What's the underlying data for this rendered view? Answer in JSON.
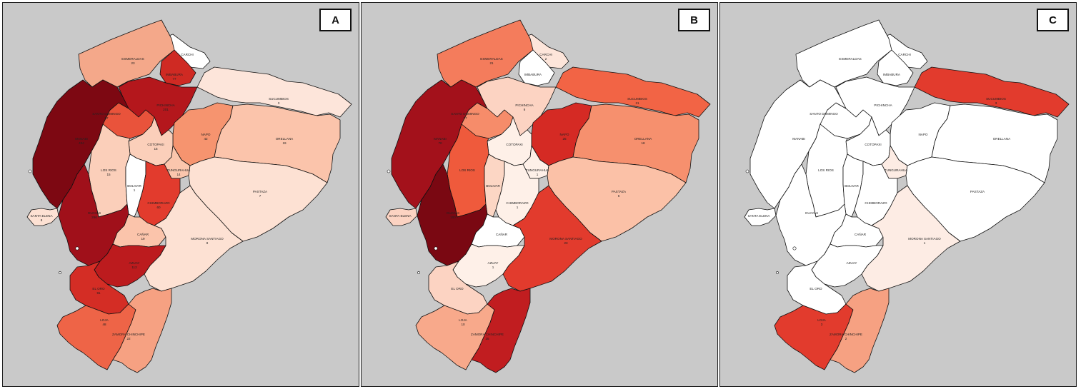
{
  "panels": [
    {
      "id": "a",
      "letter": "A",
      "regions": {
        "carchi": {
          "label": "CARCHI",
          "value": "",
          "fill": "#ffffff"
        },
        "esmeraldas": {
          "label": "ESMERALDAS",
          "value": "23",
          "fill": "#f4a88a"
        },
        "imbabura": {
          "label": "IMBABURA",
          "value": "77",
          "fill": "#cf2a23"
        },
        "pichincha": {
          "label": "PICHINCHA",
          "value": "201",
          "fill": "#b4171c"
        },
        "sucumbios": {
          "label": "SUCUMBIOS",
          "value": "3",
          "fill": "#fde5da"
        },
        "santo_domingo": {
          "label": "SANTO DOMINGO",
          "value": "57",
          "fill": "#e9533b"
        },
        "manabi": {
          "label": "MANABI",
          "value": "404",
          "fill": "#7d0812"
        },
        "napo": {
          "label": "NAPO",
          "value": "42",
          "fill": "#f6946f"
        },
        "orellana": {
          "label": "ORELLANA",
          "value": "19",
          "fill": "#fbc4ab"
        },
        "cotopaxi": {
          "label": "COTOPAXI",
          "value": "15",
          "fill": "#fbcfba"
        },
        "los_rios": {
          "label": "LOS RIOS",
          "value": "15",
          "fill": "#fbcfba"
        },
        "tungurahua": {
          "label": "TUNGURAHUA",
          "value": "14",
          "fill": "#fbc6ad"
        },
        "bolivar": {
          "label": "BOLIVAR",
          "value": "1",
          "fill": "#ffffff"
        },
        "pastaza": {
          "label": "PASTAZA",
          "value": "7",
          "fill": "#fde1d3"
        },
        "chimborazo": {
          "label": "CHIMBORAZO",
          "value": "60",
          "fill": "#e23b2d"
        },
        "santa_elena": {
          "label": "SANTA ELENA",
          "value": "8",
          "fill": "#fde1d3"
        },
        "guayas": {
          "label": "GUAYAS",
          "value": "266",
          "fill": "#a0101a"
        },
        "canar": {
          "label": "CAÑAR",
          "value": "19",
          "fill": "#fbc4ab"
        },
        "morona_santiago": {
          "label": "MORONA SANTIAGO",
          "value": "8",
          "fill": "#fde1d3"
        },
        "azuay": {
          "label": "AZUAY",
          "value": "112",
          "fill": "#bc1b1e"
        },
        "el_oro": {
          "label": "EL ORO",
          "value": "91",
          "fill": "#d42d25"
        },
        "loja": {
          "label": "LOJA",
          "value": "48",
          "fill": "#ee6447"
        },
        "zamora_chinchipe": {
          "label": "ZAMORA CHINCHIPE",
          "value": "22",
          "fill": "#f6a182"
        }
      }
    },
    {
      "id": "b",
      "letter": "B",
      "regions": {
        "carchi": {
          "label": "CARCHI",
          "value": "2",
          "fill": "#fde5da"
        },
        "esmeraldas": {
          "label": "ESMERALDAS",
          "value": "21",
          "fill": "#f47c5c"
        },
        "imbabura": {
          "label": "IMBABURA",
          "value": "",
          "fill": "#ffffff"
        },
        "pichincha": {
          "label": "PICHINCHA",
          "value": "6",
          "fill": "#fcd3c2"
        },
        "sucumbios": {
          "label": "SUCUMBIOS",
          "value": "21",
          "fill": "#f26445"
        },
        "santo_domingo": {
          "label": "SANTO DOMINGO",
          "value": "17",
          "fill": "#f68c6a"
        },
        "manabi": {
          "label": "MANABI",
          "value": "70",
          "fill": "#a3111b"
        },
        "napo": {
          "label": "NAPO",
          "value": "25",
          "fill": "#d52a24"
        },
        "orellana": {
          "label": "ORELLANA",
          "value": "18",
          "fill": "#f6906e"
        },
        "cotopaxi": {
          "label": "COTOPAXI",
          "value": "",
          "fill": "#fef0e8"
        },
        "los_rios": {
          "label": "LOS RIOS",
          "value": "",
          "fill": "#ef5a3c"
        },
        "tungurahua": {
          "label": "TUNGURAHUA",
          "value": "1",
          "fill": "#fef0e8"
        },
        "bolivar": {
          "label": "BOLIVAR",
          "value": "",
          "fill": "#fcd6c4"
        },
        "pastaza": {
          "label": "PASTAZA",
          "value": "6",
          "fill": "#fbc1a7"
        },
        "chimborazo": {
          "label": "CHIMBORAZO",
          "value": "1",
          "fill": "#fef0e8"
        },
        "santa_elena": {
          "label": "SANTA ELENA",
          "value": "",
          "fill": "#fcd3c2"
        },
        "guayas": {
          "label": "GUAYAS",
          "value": "100",
          "fill": "#7a0812"
        },
        "canar": {
          "label": "CAÑAR",
          "value": "",
          "fill": "#ffffff"
        },
        "morona_santiago": {
          "label": "MORONA SANTIAGO",
          "value": "23",
          "fill": "#e23b2d"
        },
        "azuay": {
          "label": "AZUAY",
          "value": "1",
          "fill": "#fef0e8"
        },
        "el_oro": {
          "label": "EL ORO",
          "value": "",
          "fill": "#fcd3c2"
        },
        "loja": {
          "label": "LOJA",
          "value": "10",
          "fill": "#f8a98b"
        },
        "zamora_chinchipe": {
          "label": "ZAMORA CHINCHIPE",
          "value": "25",
          "fill": "#c11d20"
        }
      }
    },
    {
      "id": "c",
      "letter": "C",
      "regions": {
        "carchi": {
          "label": "CARCHI",
          "value": "",
          "fill": "#ffffff"
        },
        "esmeraldas": {
          "label": "ESMERALDAS",
          "value": "",
          "fill": "#ffffff"
        },
        "imbabura": {
          "label": "IMBABURA",
          "value": "",
          "fill": "#ffffff"
        },
        "pichincha": {
          "label": "PICHINCHA",
          "value": "",
          "fill": "#ffffff"
        },
        "sucumbios": {
          "label": "SUCUMBIOS",
          "value": "3",
          "fill": "#e23b2d"
        },
        "santo_domingo": {
          "label": "SANTO DOMINGO",
          "value": "",
          "fill": "#ffffff"
        },
        "manabi": {
          "label": "MANABI",
          "value": "",
          "fill": "#ffffff"
        },
        "napo": {
          "label": "NAPO",
          "value": "",
          "fill": "#ffffff"
        },
        "orellana": {
          "label": "ORELLANA",
          "value": "",
          "fill": "#ffffff"
        },
        "cotopaxi": {
          "label": "COTOPAXI",
          "value": "",
          "fill": "#ffffff"
        },
        "los_rios": {
          "label": "LOS RIOS",
          "value": "",
          "fill": "#ffffff"
        },
        "tungurahua": {
          "label": "TUNGURAHUA",
          "value": "",
          "fill": "#fdece4"
        },
        "bolivar": {
          "label": "BOLIVAR",
          "value": "",
          "fill": "#ffffff"
        },
        "pastaza": {
          "label": "PASTAZA",
          "value": "",
          "fill": "#ffffff"
        },
        "chimborazo": {
          "label": "CHIMBORAZO",
          "value": "",
          "fill": "#ffffff"
        },
        "santa_elena": {
          "label": "SANTA ELENA",
          "value": "",
          "fill": "#ffffff"
        },
        "guayas": {
          "label": "GUAYAS",
          "value": "",
          "fill": "#ffffff"
        },
        "canar": {
          "label": "CAÑAR",
          "value": "",
          "fill": "#ffffff"
        },
        "morona_santiago": {
          "label": "MORONA SANTIAGO",
          "value": "1",
          "fill": "#fdece4"
        },
        "azuay": {
          "label": "AZUAY",
          "value": "",
          "fill": "#ffffff"
        },
        "el_oro": {
          "label": "EL ORO",
          "value": "",
          "fill": "#ffffff"
        },
        "loja": {
          "label": "LOJA",
          "value": "3",
          "fill": "#e23b2d"
        },
        "zamora_chinchipe": {
          "label": "ZAMORA CHINCHIPE",
          "value": "2",
          "fill": "#f6a182"
        }
      }
    }
  ]
}
